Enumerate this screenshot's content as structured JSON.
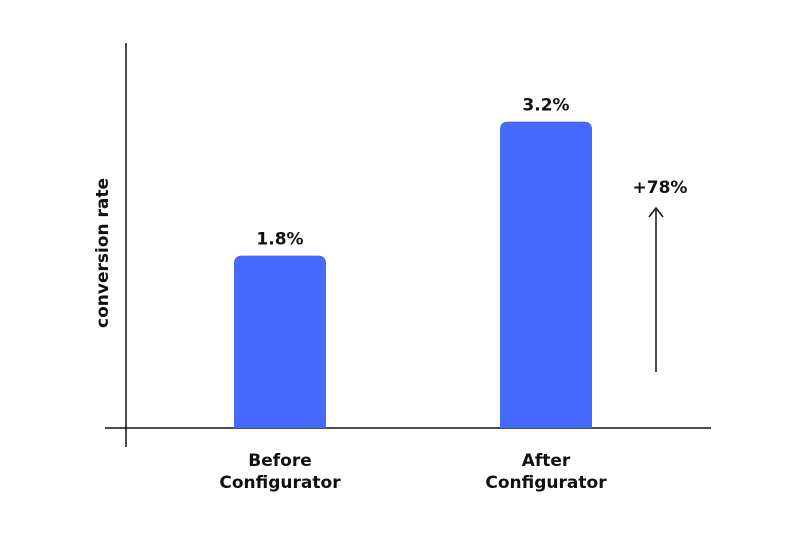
{
  "chart_data": {
    "type": "bar",
    "y_label": "conversion rate",
    "categories": [
      "Before Configurator",
      "After Configurator"
    ],
    "values": [
      1.8,
      3.2
    ],
    "value_labels": [
      "1.8%",
      "3.2%"
    ],
    "color": "#4569fd",
    "ylim": [
      0,
      4
    ],
    "annotation": "+78%"
  }
}
